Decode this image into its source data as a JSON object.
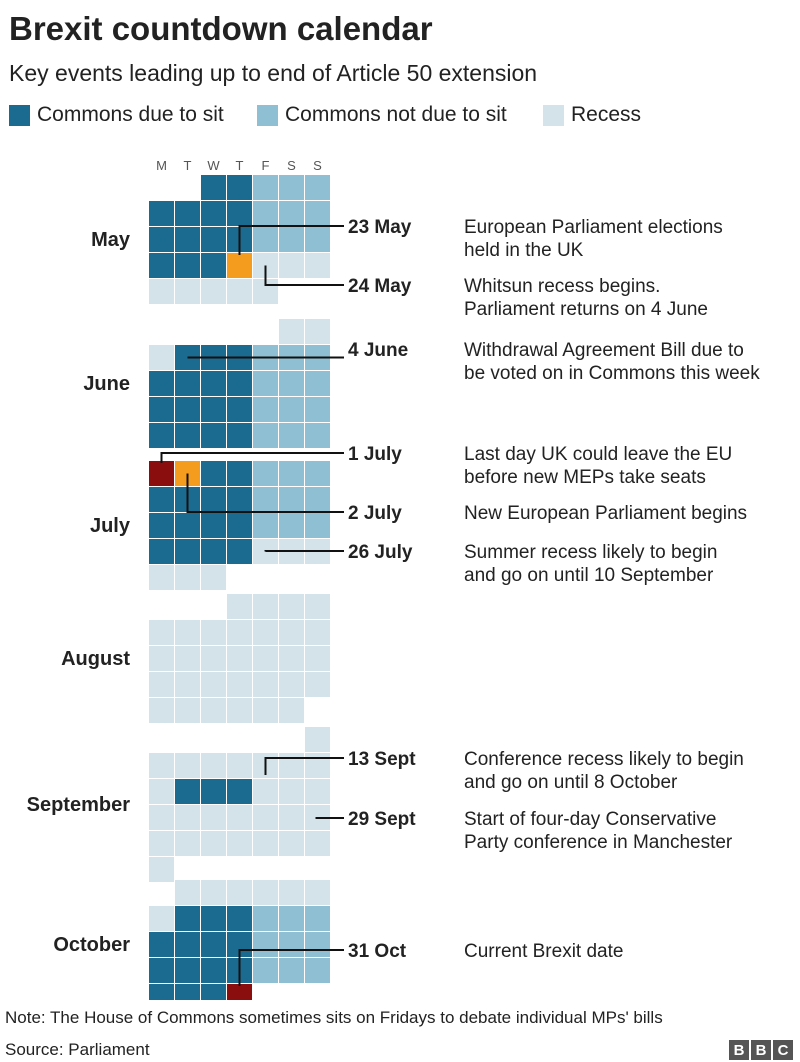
{
  "title": "Brexit countdown calendar",
  "subtitle": "Key events leading up to end of Article 50 extension",
  "legend": [
    {
      "label": "Commons due to sit",
      "color": "#1a6b8f"
    },
    {
      "label": "Commons not due to sit",
      "color": "#8fbfd3"
    },
    {
      "label": "Recess",
      "color": "#d4e2e9"
    }
  ],
  "colors": {
    "sit": "#1a6b8f",
    "nosit": "#8fbfd3",
    "recess": "#d4e2e9",
    "highlight_orange": "#f39c1e",
    "highlight_red": "#8a0e0e",
    "line": "#111111"
  },
  "weekdays": [
    "M",
    "T",
    "W",
    "T",
    "F",
    "S",
    "S"
  ],
  "chart_data": {
    "type": "calendar",
    "codes": {
      "1": "Commons due to sit",
      "2": "Commons not due to sit",
      "3": "Recess",
      "O": "highlighted event day",
      "R": "key deadline day"
    },
    "months": [
      {
        "name": "May",
        "weeks": [
          [
            0,
            0,
            1,
            1,
            2,
            2,
            2
          ],
          [
            1,
            1,
            1,
            1,
            2,
            2,
            2
          ],
          [
            1,
            1,
            1,
            1,
            2,
            2,
            2
          ],
          [
            1,
            1,
            1,
            "O",
            3,
            3,
            3
          ],
          [
            3,
            3,
            3,
            3,
            3,
            0,
            0
          ]
        ]
      },
      {
        "name": "June",
        "weeks": [
          [
            0,
            0,
            0,
            0,
            0,
            3,
            3
          ],
          [
            3,
            1,
            1,
            1,
            2,
            2,
            2
          ],
          [
            1,
            1,
            1,
            1,
            2,
            2,
            2
          ],
          [
            1,
            1,
            1,
            1,
            2,
            2,
            2
          ],
          [
            1,
            1,
            1,
            1,
            2,
            2,
            2
          ]
        ]
      },
      {
        "name": "July",
        "weeks": [
          [
            "R",
            "O",
            1,
            1,
            2,
            2,
            2
          ],
          [
            1,
            1,
            1,
            1,
            2,
            2,
            2
          ],
          [
            1,
            1,
            1,
            1,
            2,
            2,
            2
          ],
          [
            1,
            1,
            1,
            1,
            3,
            3,
            3
          ],
          [
            3,
            3,
            3,
            0,
            0,
            0,
            0
          ]
        ]
      },
      {
        "name": "August",
        "weeks": [
          [
            0,
            0,
            0,
            3,
            3,
            3,
            3
          ],
          [
            3,
            3,
            3,
            3,
            3,
            3,
            3
          ],
          [
            3,
            3,
            3,
            3,
            3,
            3,
            3
          ],
          [
            3,
            3,
            3,
            3,
            3,
            3,
            3
          ],
          [
            3,
            3,
            3,
            3,
            3,
            3,
            0
          ]
        ]
      },
      {
        "name": "September",
        "weeks": [
          [
            0,
            0,
            0,
            0,
            0,
            0,
            3
          ],
          [
            3,
            3,
            3,
            3,
            3,
            3,
            3
          ],
          [
            3,
            1,
            1,
            1,
            3,
            3,
            3
          ],
          [
            3,
            3,
            3,
            3,
            3,
            3,
            3
          ],
          [
            3,
            3,
            3,
            3,
            3,
            3,
            3
          ],
          [
            3,
            0,
            0,
            0,
            0,
            0,
            0
          ]
        ]
      },
      {
        "name": "October",
        "weeks": [
          [
            0,
            3,
            3,
            3,
            3,
            3,
            3
          ],
          [
            3,
            1,
            1,
            1,
            2,
            2,
            2
          ],
          [
            1,
            1,
            1,
            1,
            2,
            2,
            2
          ],
          [
            1,
            1,
            1,
            1,
            2,
            2,
            2
          ],
          [
            1,
            1,
            1,
            "R",
            0,
            0,
            0
          ]
        ]
      }
    ],
    "events": [
      {
        "date": "23 May",
        "lines": [
          "European Parliament elections",
          "held in the UK"
        ]
      },
      {
        "date": "24 May",
        "lines": [
          "Whitsun recess begins.",
          "Parliament returns on 4 June"
        ]
      },
      {
        "date": "4 June",
        "lines": [
          "Withdrawal Agreement Bill due to",
          "be voted on in Commons this week"
        ]
      },
      {
        "date": "1 July",
        "lines": [
          "Last day UK could leave the EU",
          "before new MEPs take seats"
        ]
      },
      {
        "date": "2 July",
        "lines": [
          "New European Parliament begins"
        ]
      },
      {
        "date": "26 July",
        "lines": [
          "Summer recess likely to begin",
          "and go on until 10 September"
        ]
      },
      {
        "date": "13 Sept",
        "lines": [
          "Conference recess likely to begin",
          "and go on until 8 October"
        ]
      },
      {
        "date": "29 Sept",
        "lines": [
          "Start of four-day Conservative",
          "Party conference in Manchester"
        ]
      },
      {
        "date": "31 Oct",
        "lines": [
          "Current Brexit date"
        ]
      }
    ]
  },
  "note": "Note: The House of Commons sometimes sits on Fridays to debate individual MPs' bills",
  "source": "Source: Parliament",
  "logo": [
    "B",
    "B",
    "C"
  ]
}
